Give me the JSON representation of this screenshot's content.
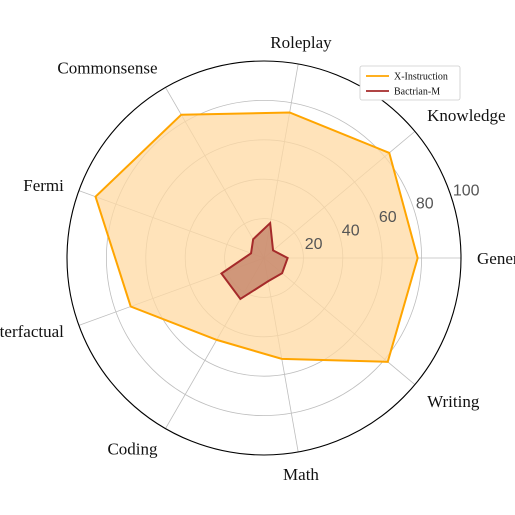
{
  "chart_data": {
    "type": "radar",
    "categories": [
      "Generic",
      "Knowledge",
      "Roleplay",
      "Commonsense",
      "Fermi",
      "Counterfactual",
      "Coding",
      "Math",
      "Writing"
    ],
    "rlim": [
      0,
      100
    ],
    "rticks": [
      20,
      40,
      60,
      80,
      100
    ],
    "grid": true,
    "legend_position": "top-right",
    "series": [
      {
        "name": "X-Instruction",
        "values": [
          78,
          83,
          75,
          84,
          91,
          72,
          48,
          52,
          82
        ]
      },
      {
        "name": "Bactrian-M",
        "values": [
          12,
          6,
          18,
          11,
          7,
          23,
          24,
          12,
          12
        ]
      }
    ]
  },
  "colors": {
    "x_instruction_line": "#FFA500",
    "x_instruction_fill": "#FFDAA3",
    "bactrian_line": "#A52A2A",
    "bactrian_fill": "#C88A6E",
    "grid": "#BDBDBD",
    "outer_ring": "#000000"
  }
}
